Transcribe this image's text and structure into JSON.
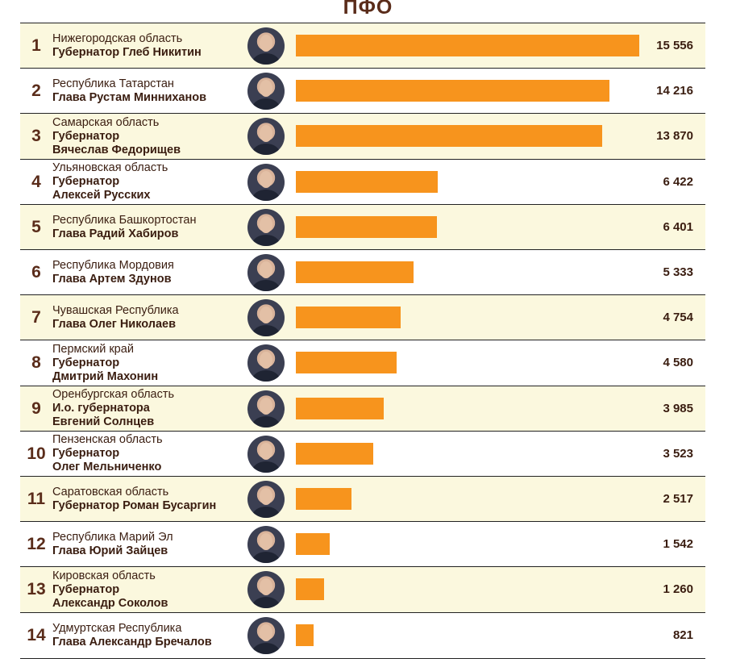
{
  "title": "ПФО",
  "chart_data": {
    "type": "bar",
    "orientation": "horizontal",
    "title": "ПФО",
    "rows": [
      {
        "rank": "1",
        "region": "Нижегородская область",
        "person": "Губернатор Глеб Никитин",
        "value": 15556,
        "value_label": "15 556"
      },
      {
        "rank": "2",
        "region": "Республика Татарстан",
        "person": "Глава Рустам Минниханов",
        "value": 14216,
        "value_label": "14 216"
      },
      {
        "rank": "3",
        "region": "Самарская область",
        "person": "Губернатор\nВячеслав Федорищев",
        "value": 13870,
        "value_label": "13 870"
      },
      {
        "rank": "4",
        "region": "Ульяновская область",
        "person": "Губернатор\nАлексей Русских",
        "value": 6422,
        "value_label": "6 422"
      },
      {
        "rank": "5",
        "region": "Республика Башкортостан",
        "person": "Глава Радий Хабиров",
        "value": 6401,
        "value_label": "6 401"
      },
      {
        "rank": "6",
        "region": "Республика Мордовия",
        "person": "Глава Артем Здунов",
        "value": 5333,
        "value_label": "5 333"
      },
      {
        "rank": "7",
        "region": "Чувашская Республика",
        "person": "Глава Олег Николаев",
        "value": 4754,
        "value_label": "4 754"
      },
      {
        "rank": "8",
        "region": "Пермский край",
        "person": "Губернатор\nДмитрий Махонин",
        "value": 4580,
        "value_label": "4 580"
      },
      {
        "rank": "9",
        "region": "Оренбургская область",
        "person": "И.о. губернатора\nЕвгений Солнцев",
        "value": 3985,
        "value_label": "3 985"
      },
      {
        "rank": "10",
        "region": "Пензенская область",
        "person": "Губернатор\nОлег Мельниченко",
        "value": 3523,
        "value_label": "3 523"
      },
      {
        "rank": "11",
        "region": "Саратовская область",
        "person": "Губернатор Роман Бусаргин",
        "value": 2517,
        "value_label": "2 517"
      },
      {
        "rank": "12",
        "region": "Республика Марий Эл",
        "person": "Глава Юрий Зайцев",
        "value": 1542,
        "value_label": "1 542"
      },
      {
        "rank": "13",
        "region": "Кировская область",
        "person": "Губернатор\nАлександр Соколов",
        "value": 1260,
        "value_label": "1 260"
      },
      {
        "rank": "14",
        "region": "Удмуртская Республика",
        "person": "Глава Александр Бречалов",
        "value": 821,
        "value_label": "821"
      }
    ],
    "bar_color": "#f7941d",
    "shaded_row_color": "#fbf8de",
    "grid": false,
    "legend": "none"
  }
}
